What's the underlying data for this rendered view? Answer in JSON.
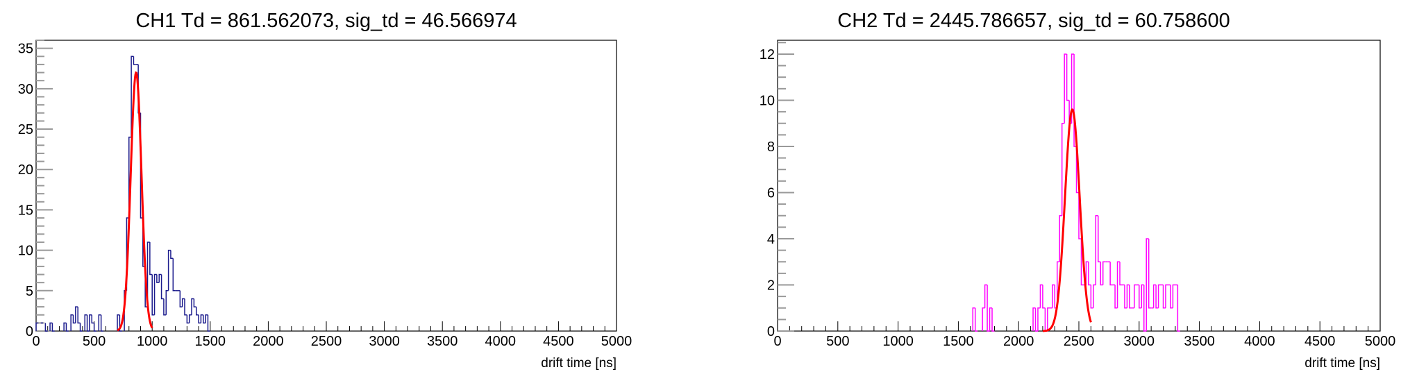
{
  "chart_data": [
    {
      "type": "histogram",
      "title": "CH1 Td = 861.562073, sig_td = 46.566974",
      "xlabel": "drift time [ns]",
      "ylabel": "",
      "xlim": [
        0,
        5000
      ],
      "ylim": [
        0,
        36
      ],
      "xticks": [
        "0",
        "500",
        "1000",
        "1500",
        "2000",
        "2500",
        "3000",
        "3500",
        "4000",
        "4500",
        "5000"
      ],
      "yticks": [
        "0",
        "5",
        "10",
        "15",
        "20",
        "25",
        "30",
        "35"
      ],
      "bin_width": 20,
      "line_color": "#1a1a8c",
      "fit_color": "#ff0000",
      "bins": [
        {
          "x": 0,
          "y": 1
        },
        {
          "x": 40,
          "y": 1
        },
        {
          "x": 80,
          "y": 0
        },
        {
          "x": 120,
          "y": 1
        },
        {
          "x": 140,
          "y": 0
        },
        {
          "x": 240,
          "y": 1
        },
        {
          "x": 260,
          "y": 0
        },
        {
          "x": 300,
          "y": 2
        },
        {
          "x": 320,
          "y": 1
        },
        {
          "x": 340,
          "y": 3
        },
        {
          "x": 360,
          "y": 1
        },
        {
          "x": 380,
          "y": 0
        },
        {
          "x": 420,
          "y": 2
        },
        {
          "x": 440,
          "y": 0
        },
        {
          "x": 460,
          "y": 2
        },
        {
          "x": 480,
          "y": 1
        },
        {
          "x": 500,
          "y": 0
        },
        {
          "x": 540,
          "y": 2
        },
        {
          "x": 560,
          "y": 0
        },
        {
          "x": 700,
          "y": 2
        },
        {
          "x": 720,
          "y": 0
        },
        {
          "x": 760,
          "y": 5
        },
        {
          "x": 780,
          "y": 14
        },
        {
          "x": 800,
          "y": 24
        },
        {
          "x": 820,
          "y": 34
        },
        {
          "x": 840,
          "y": 33
        },
        {
          "x": 860,
          "y": 33
        },
        {
          "x": 880,
          "y": 27
        },
        {
          "x": 900,
          "y": 14
        },
        {
          "x": 920,
          "y": 8
        },
        {
          "x": 940,
          "y": 3
        },
        {
          "x": 960,
          "y": 11
        },
        {
          "x": 980,
          "y": 7
        },
        {
          "x": 1000,
          "y": 2
        },
        {
          "x": 1020,
          "y": 7
        },
        {
          "x": 1040,
          "y": 6
        },
        {
          "x": 1060,
          "y": 7
        },
        {
          "x": 1080,
          "y": 4
        },
        {
          "x": 1100,
          "y": 2
        },
        {
          "x": 1120,
          "y": 5
        },
        {
          "x": 1140,
          "y": 10
        },
        {
          "x": 1160,
          "y": 9
        },
        {
          "x": 1180,
          "y": 5
        },
        {
          "x": 1200,
          "y": 5
        },
        {
          "x": 1220,
          "y": 5
        },
        {
          "x": 1240,
          "y": 3
        },
        {
          "x": 1260,
          "y": 4
        },
        {
          "x": 1280,
          "y": 2
        },
        {
          "x": 1300,
          "y": 1
        },
        {
          "x": 1320,
          "y": 2
        },
        {
          "x": 1340,
          "y": 4
        },
        {
          "x": 1360,
          "y": 3
        },
        {
          "x": 1380,
          "y": 2
        },
        {
          "x": 1400,
          "y": 1
        },
        {
          "x": 1420,
          "y": 2
        },
        {
          "x": 1440,
          "y": 1
        },
        {
          "x": 1460,
          "y": 2
        },
        {
          "x": 1480,
          "y": 0
        }
      ],
      "fit": {
        "mean": 861.562073,
        "sigma": 46.566974,
        "amplitude": 32,
        "range": [
          700,
          1000
        ]
      }
    },
    {
      "type": "histogram",
      "title": "CH2 Td = 2445.786657, sig_td = 60.758600",
      "xlabel": "drift time [ns]",
      "ylabel": "",
      "xlim": [
        0,
        5000
      ],
      "ylim": [
        0,
        12.6
      ],
      "xticks": [
        "0",
        "500",
        "1000",
        "1500",
        "2000",
        "2500",
        "3000",
        "3500",
        "4000",
        "4500",
        "5000"
      ],
      "yticks": [
        "0",
        "2",
        "4",
        "6",
        "8",
        "10",
        "12"
      ],
      "bin_width": 20,
      "line_color": "#ff00ff",
      "fit_color": "#ff0000",
      "bins": [
        {
          "x": 1620,
          "y": 1
        },
        {
          "x": 1640,
          "y": 0
        },
        {
          "x": 1700,
          "y": 1
        },
        {
          "x": 1720,
          "y": 2
        },
        {
          "x": 1740,
          "y": 0
        },
        {
          "x": 1760,
          "y": 1
        },
        {
          "x": 1780,
          "y": 0
        },
        {
          "x": 2120,
          "y": 1
        },
        {
          "x": 2140,
          "y": 0
        },
        {
          "x": 2160,
          "y": 1
        },
        {
          "x": 2180,
          "y": 2
        },
        {
          "x": 2200,
          "y": 1
        },
        {
          "x": 2220,
          "y": 0
        },
        {
          "x": 2240,
          "y": 1
        },
        {
          "x": 2260,
          "y": 1
        },
        {
          "x": 2280,
          "y": 2
        },
        {
          "x": 2300,
          "y": 1
        },
        {
          "x": 2320,
          "y": 3
        },
        {
          "x": 2340,
          "y": 5
        },
        {
          "x": 2360,
          "y": 9
        },
        {
          "x": 2380,
          "y": 12
        },
        {
          "x": 2400,
          "y": 10
        },
        {
          "x": 2420,
          "y": 9
        },
        {
          "x": 2440,
          "y": 12
        },
        {
          "x": 2460,
          "y": 8
        },
        {
          "x": 2480,
          "y": 6
        },
        {
          "x": 2500,
          "y": 4
        },
        {
          "x": 2520,
          "y": 2
        },
        {
          "x": 2540,
          "y": 2
        },
        {
          "x": 2560,
          "y": 3
        },
        {
          "x": 2580,
          "y": 2
        },
        {
          "x": 2600,
          "y": 1
        },
        {
          "x": 2620,
          "y": 2
        },
        {
          "x": 2640,
          "y": 5
        },
        {
          "x": 2660,
          "y": 3
        },
        {
          "x": 2680,
          "y": 2
        },
        {
          "x": 2700,
          "y": 3
        },
        {
          "x": 2720,
          "y": 3
        },
        {
          "x": 2740,
          "y": 3
        },
        {
          "x": 2760,
          "y": 2
        },
        {
          "x": 2780,
          "y": 2
        },
        {
          "x": 2800,
          "y": 1
        },
        {
          "x": 2820,
          "y": 3
        },
        {
          "x": 2840,
          "y": 2
        },
        {
          "x": 2860,
          "y": 2
        },
        {
          "x": 2880,
          "y": 1
        },
        {
          "x": 2900,
          "y": 2
        },
        {
          "x": 2920,
          "y": 1
        },
        {
          "x": 2940,
          "y": 1
        },
        {
          "x": 2960,
          "y": 2
        },
        {
          "x": 2980,
          "y": 2
        },
        {
          "x": 3000,
          "y": 1
        },
        {
          "x": 3020,
          "y": 2
        },
        {
          "x": 3040,
          "y": 0
        },
        {
          "x": 3060,
          "y": 4
        },
        {
          "x": 3080,
          "y": 1
        },
        {
          "x": 3100,
          "y": 1
        },
        {
          "x": 3120,
          "y": 2
        },
        {
          "x": 3140,
          "y": 1
        },
        {
          "x": 3160,
          "y": 2
        },
        {
          "x": 3180,
          "y": 2
        },
        {
          "x": 3200,
          "y": 1
        },
        {
          "x": 3220,
          "y": 2
        },
        {
          "x": 3240,
          "y": 2
        },
        {
          "x": 3260,
          "y": 1
        },
        {
          "x": 3280,
          "y": 2
        },
        {
          "x": 3300,
          "y": 2
        },
        {
          "x": 3320,
          "y": 0
        }
      ],
      "fit": {
        "mean": 2445.786657,
        "sigma": 60.7586,
        "amplitude": 9.6,
        "range": [
          2200,
          2600
        ]
      }
    }
  ]
}
